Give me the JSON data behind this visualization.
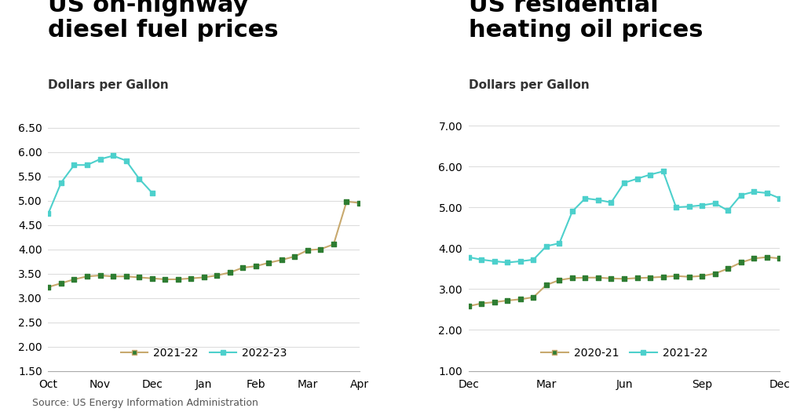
{
  "chart1": {
    "title": "US on-highway\ndiesel fuel prices",
    "subtitle": "Dollars per Gallon",
    "ylim": [
      1.5,
      6.75
    ],
    "yticks": [
      1.5,
      2.0,
      2.5,
      3.0,
      3.5,
      4.0,
      4.5,
      5.0,
      5.5,
      6.0,
      6.5
    ],
    "xtick_labels": [
      "Oct",
      "Nov",
      "Dec",
      "Jan",
      "Feb",
      "Mar",
      "Apr"
    ],
    "series": [
      {
        "label": "2021-22",
        "color": "#C8A96E",
        "marker_color": "#2e7d32",
        "x": [
          0,
          0.5,
          1,
          1.5,
          2,
          2.5,
          3,
          3.5,
          4,
          4.5,
          5,
          5.5,
          6,
          6.5,
          7,
          7.5,
          8,
          8.5,
          9,
          9.5,
          10,
          10.5,
          11,
          11.5,
          12
        ],
        "y": [
          3.22,
          3.3,
          3.38,
          3.44,
          3.46,
          3.44,
          3.44,
          3.42,
          3.4,
          3.38,
          3.38,
          3.4,
          3.42,
          3.46,
          3.52,
          3.62,
          3.65,
          3.72,
          3.78,
          3.85,
          3.98,
          4.0,
          4.1,
          4.98,
          4.95
        ]
      },
      {
        "label": "2022-23",
        "color": "#4DD0CC",
        "marker_color": "#4DD0CC",
        "x": [
          0,
          0.5,
          1,
          1.5,
          2,
          2.5,
          3,
          3.5,
          4,
          4.5,
          5,
          5.5,
          6
        ],
        "y": [
          4.73,
          5.37,
          5.73,
          5.73,
          5.85,
          5.92,
          5.82,
          5.45,
          5.16,
          null,
          null,
          null,
          null
        ]
      }
    ]
  },
  "chart2": {
    "title": "US residential\nheating oil prices",
    "subtitle": "Dollars per Gallon",
    "ylim": [
      1.0,
      7.25
    ],
    "yticks": [
      1.0,
      2.0,
      3.0,
      4.0,
      5.0,
      6.0,
      7.0
    ],
    "xtick_labels": [
      "Dec",
      "Mar",
      "Jun",
      "Sep",
      "Dec"
    ],
    "series": [
      {
        "label": "2020-21",
        "color": "#C8A96E",
        "marker_color": "#2e7d32",
        "x": [
          0,
          0.5,
          1,
          1.5,
          2,
          2.5,
          3,
          3.5,
          4,
          4.5,
          5,
          5.5,
          6,
          6.5,
          7,
          7.5,
          8,
          8.5,
          9,
          9.5,
          10,
          10.5,
          11,
          11.5,
          12
        ],
        "y": [
          2.58,
          2.65,
          2.68,
          2.72,
          2.75,
          2.8,
          3.1,
          3.22,
          3.27,
          3.28,
          3.28,
          3.26,
          3.25,
          3.27,
          3.28,
          3.3,
          3.32,
          3.3,
          3.32,
          3.38,
          3.5,
          3.65,
          3.75,
          3.78,
          3.75
        ]
      },
      {
        "label": "2021-22",
        "color": "#4DD0CC",
        "marker_color": "#4DD0CC",
        "x": [
          0,
          0.5,
          1,
          1.5,
          2,
          2.5,
          3,
          3.5,
          4,
          4.5,
          5,
          5.5,
          6,
          6.5,
          7,
          7.5,
          8,
          8.5,
          9,
          9.5,
          10,
          10.5,
          11,
          11.5,
          12
        ],
        "y": [
          3.78,
          3.72,
          3.68,
          3.65,
          3.68,
          3.72,
          4.05,
          4.12,
          4.9,
          5.22,
          5.18,
          5.12,
          5.6,
          5.7,
          5.8,
          5.88,
          5.0,
          5.02,
          5.05,
          5.1,
          4.92,
          5.3,
          5.38,
          5.35,
          5.22
        ]
      }
    ]
  },
  "source_text": "Source: US Energy Information Administration",
  "background_color": "#ffffff",
  "grid_color": "#dddddd",
  "title_fontsize": 22,
  "subtitle_fontsize": 11,
  "tick_fontsize": 10,
  "source_fontsize": 9,
  "legend_fontsize": 10
}
